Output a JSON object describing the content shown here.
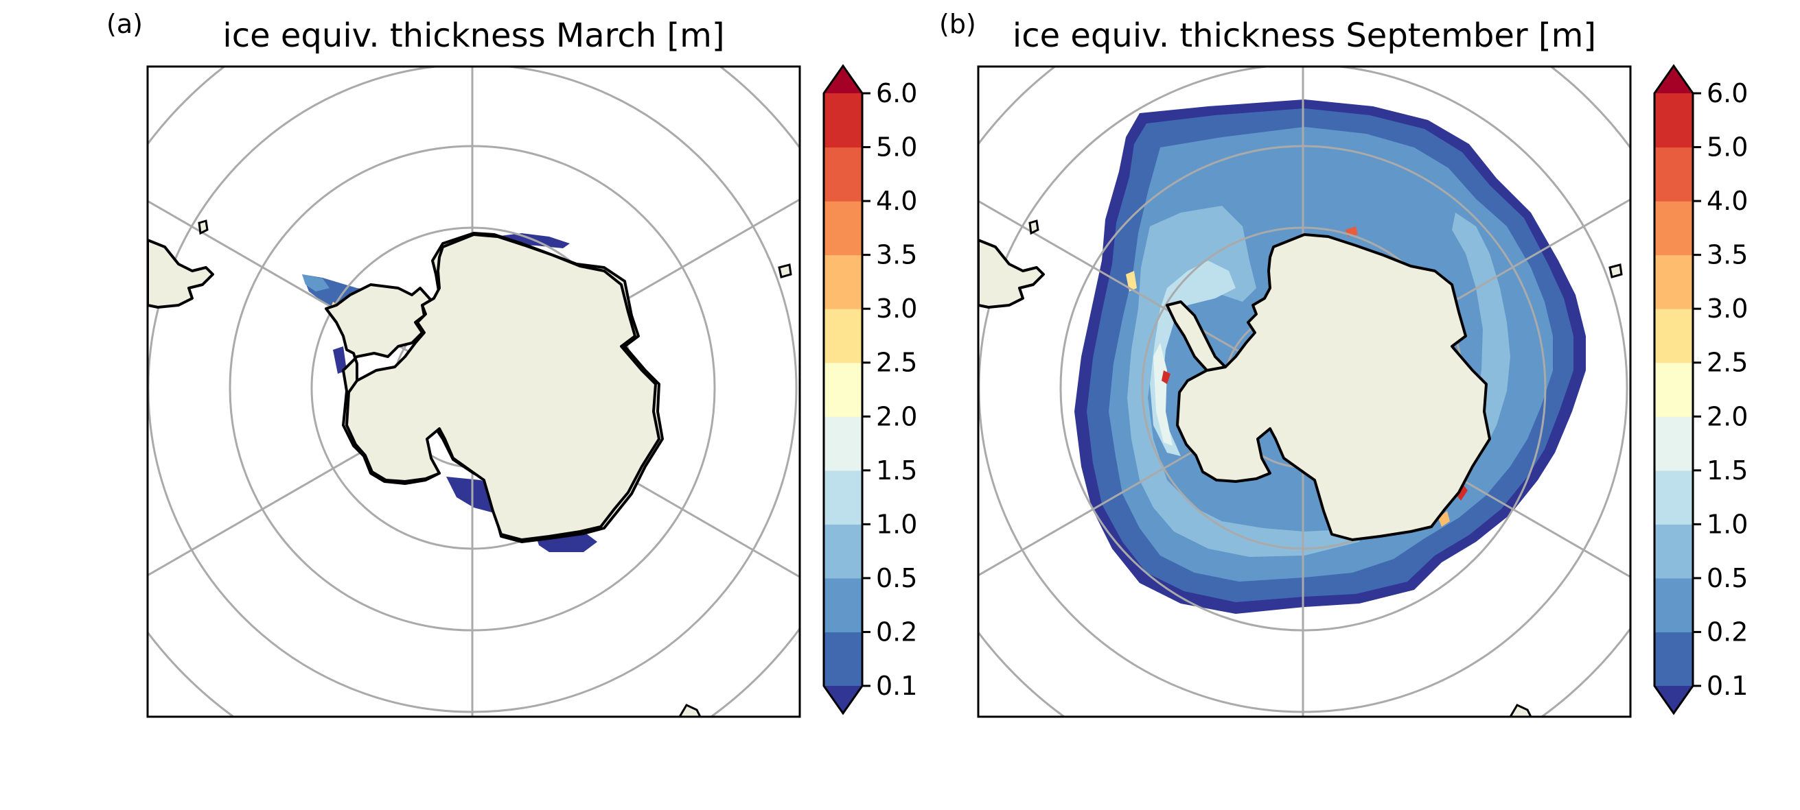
{
  "panels": [
    {
      "label": "(a)",
      "title": "ice equiv. thickness March [m]",
      "month": "March",
      "map_type": "south-polar-stereographic",
      "gridlines": true,
      "ice_extent": "narrow coastal band (Weddell Sea, Ross Sea, Amundsen-Bellingshausen coast)"
    },
    {
      "label": "(b)",
      "title": "ice equiv. thickness September [m]",
      "month": "September",
      "map_type": "south-polar-stereographic",
      "gridlines": true,
      "ice_extent": "broad ring around Antarctica, thickest (>3 m) along western Weddell and East Antarctic coasts"
    }
  ],
  "colorbar": {
    "units": "m",
    "extend": "both",
    "levels": [
      "0.1",
      "0.2",
      "0.5",
      "1.0",
      "1.5",
      "2.0",
      "2.5",
      "3.0",
      "3.5",
      "4.0",
      "5.0",
      "6.0"
    ],
    "colors": [
      "#4169b0",
      "#6198c9",
      "#8cbcdc",
      "#bedfec",
      "#e6f3ef",
      "#fefecb",
      "#fee491",
      "#fdbc6e",
      "#f88f52",
      "#e75d3e",
      "#d22d28"
    ],
    "under_color": "#313695",
    "over_color": "#a50026"
  },
  "style": {
    "land_color": "#efefdf",
    "grid_color": "#aaaaaa",
    "coast_color": "#000000",
    "ocean_color": "#ffffff"
  }
}
